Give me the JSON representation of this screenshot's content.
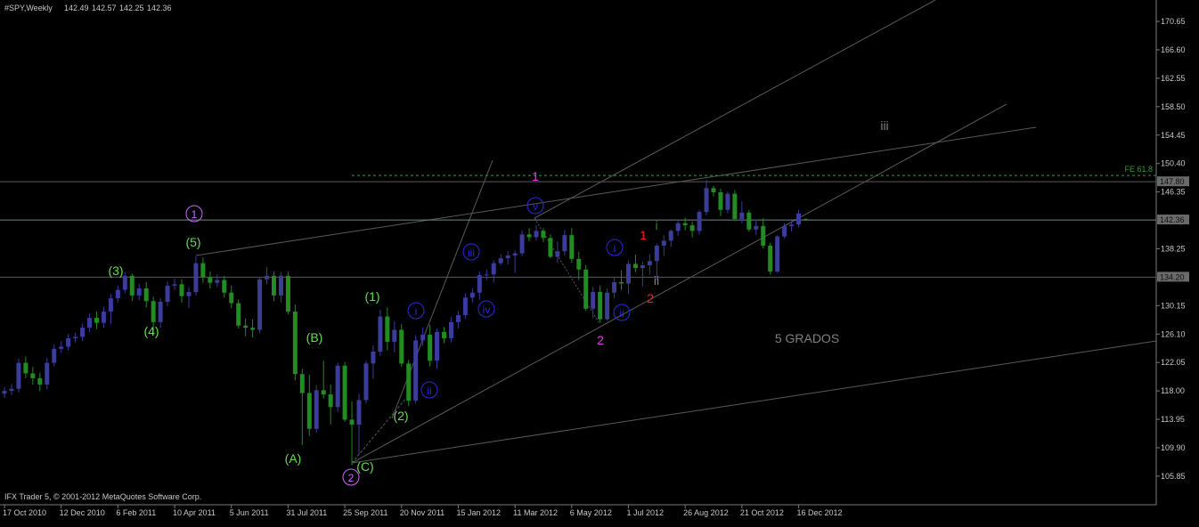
{
  "chart_data": {
    "type": "candlestick",
    "title": "#SPY,Weekly",
    "footer": "IFX Trader 5, © 2001-2012 MetaQuotes Software Corp.",
    "up_color": "#3c3c9a",
    "down_color": "#228b22",
    "categories": [
      "17 Oct 2010",
      null,
      null,
      null,
      null,
      null,
      null,
      null,
      "12 Dec 2010",
      null,
      null,
      null,
      null,
      null,
      null,
      null,
      "6 Feb 2011",
      null,
      null,
      null,
      null,
      null,
      null,
      null,
      "10 Apr 2011",
      null,
      null,
      null,
      null,
      null,
      null,
      null,
      "5 Jun 2011",
      null,
      null,
      null,
      null,
      null,
      null,
      null,
      "31 Jul 2011",
      null,
      null,
      null,
      null,
      null,
      null,
      null,
      "25 Sep 2011",
      null,
      null,
      null,
      null,
      null,
      null,
      null,
      "20 Nov 2011",
      null,
      null,
      null,
      null,
      null,
      null,
      null,
      "15 Jan 2012",
      null,
      null,
      null,
      null,
      null,
      null,
      null,
      "11 Mar 2012",
      null,
      null,
      null,
      null,
      null,
      null,
      null,
      "6 May 2012",
      null,
      null,
      null,
      null,
      null,
      null,
      null,
      "1 Jul 2012",
      null,
      null,
      null,
      null,
      null,
      null,
      null,
      "26 Aug 2012",
      null,
      null,
      null,
      null,
      null,
      null,
      null,
      "21 Oct 2012",
      null,
      null,
      null,
      null,
      null,
      null,
      null,
      "16 Dec 2012",
      null
    ],
    "open": [
      117.6,
      118.0,
      118.3,
      122.0,
      120.5,
      119.8,
      118.9,
      122.0,
      124.0,
      124.3,
      125.5,
      125.7,
      127.0,
      128.4,
      127.7,
      129.3,
      131.2,
      132.4,
      134.4,
      131.6,
      132.6,
      130.8,
      127.8,
      130.7,
      133.0,
      133.2,
      131.5,
      132.1,
      136.2,
      134.2,
      133.4,
      133.8,
      132.0,
      130.5,
      127.3,
      127.0,
      126.7,
      133.9,
      134.4,
      131.6,
      134.4,
      129.3,
      120.4,
      117.7,
      112.6,
      118.1,
      117.5,
      115.7,
      121.6,
      113.9,
      113.2,
      116.7,
      121.9,
      123.6,
      128.6,
      125.0,
      126.7,
      121.9,
      116.6,
      125.2,
      126.0,
      122.3,
      126.4,
      125.5,
      127.8,
      128.8,
      131.3,
      132.0,
      134.5,
      134.6,
      136.2,
      136.9,
      137.3,
      137.6,
      140.3,
      139.9,
      140.8,
      139.8,
      137.1,
      137.9,
      140.2,
      136.8,
      135.3,
      129.7,
      132.1,
      128.2,
      132.0,
      133.5,
      133.3,
      136.1,
      135.5,
      135.9,
      136.5,
      138.7,
      139.4,
      140.8,
      141.9,
      141.6,
      140.8,
      143.5,
      146.9,
      146.3,
      143.8,
      146.1,
      142.5,
      143.4,
      141.0,
      141.5,
      138.7,
      135.0,
      140.0,
      141.5,
      141.7,
      142.49
    ],
    "high": [
      118.5,
      119.0,
      122.6,
      122.9,
      121.4,
      120.6,
      122.7,
      124.6,
      125.1,
      126.1,
      126.3,
      127.6,
      129.0,
      129.3,
      130.0,
      131.8,
      133.0,
      134.9,
      134.7,
      133.3,
      133.5,
      131.4,
      131.2,
      133.6,
      134.0,
      133.9,
      132.8,
      137.2,
      137.0,
      135.0,
      134.6,
      134.4,
      133.0,
      131.0,
      128.3,
      128.2,
      134.2,
      135.7,
      135.0,
      134.9,
      135.0,
      130.3,
      121.1,
      120.3,
      118.8,
      122.3,
      118.9,
      122.0,
      122.1,
      116.5,
      117.6,
      122.3,
      124.5,
      129.6,
      129.9,
      127.9,
      127.5,
      122.4,
      125.9,
      127.0,
      127.4,
      126.9,
      127.1,
      128.5,
      129.4,
      131.9,
      132.6,
      135.0,
      135.3,
      136.6,
      137.5,
      137.9,
      138.0,
      140.9,
      141.2,
      141.6,
      141.2,
      140.3,
      139.3,
      140.9,
      141.2,
      137.8,
      135.9,
      132.8,
      133.0,
      132.6,
      134.1,
      135.2,
      136.6,
      137.4,
      136.4,
      137.5,
      139.0,
      140.2,
      141.0,
      142.2,
      142.7,
      142.1,
      143.8,
      148.1,
      147.2,
      146.8,
      146.4,
      146.6,
      145.0,
      143.8,
      142.4,
      142.6,
      139.1,
      140.2,
      141.9,
      142.2,
      143.8,
      142.57
    ],
    "low": [
      117.0,
      117.4,
      117.8,
      119.8,
      118.9,
      118.0,
      118.2,
      121.5,
      123.4,
      123.8,
      124.9,
      125.1,
      126.4,
      126.8,
      127.0,
      127.5,
      130.6,
      131.9,
      130.8,
      130.9,
      129.9,
      125.9,
      127.0,
      130.1,
      132.4,
      130.6,
      129.8,
      131.6,
      133.4,
      132.6,
      132.8,
      131.3,
      129.8,
      126.9,
      125.8,
      125.6,
      126.2,
      133.2,
      130.8,
      130.6,
      128.9,
      119.5,
      110.3,
      111.6,
      112.1,
      116.9,
      113.2,
      115.0,
      113.6,
      107.4,
      109.0,
      116.2,
      119.7,
      123.0,
      123.8,
      123.5,
      121.4,
      115.8,
      116.2,
      124.4,
      121.5,
      121.2,
      124.8,
      124.9,
      126.9,
      128.3,
      130.6,
      131.0,
      133.8,
      133.4,
      135.9,
      136.0,
      134.8,
      137.2,
      139.3,
      139.4,
      139.2,
      136.9,
      136.2,
      137.3,
      136.3,
      133.8,
      129.4,
      128.4,
      127.7,
      128.0,
      131.2,
      132.4,
      131.8,
      134.9,
      132.9,
      134.6,
      133.8,
      137.2,
      138.5,
      140.1,
      140.9,
      139.9,
      140.3,
      143.0,
      145.7,
      142.9,
      143.3,
      142.2,
      141.9,
      140.7,
      140.2,
      138.3,
      134.6,
      134.8,
      139.7,
      140.7,
      141.3,
      142.25
    ],
    "close": [
      118.0,
      118.3,
      122.0,
      120.5,
      119.8,
      118.9,
      122.0,
      124.0,
      124.3,
      125.5,
      125.7,
      127.0,
      128.4,
      127.7,
      129.3,
      131.2,
      132.4,
      134.4,
      131.6,
      132.6,
      130.8,
      127.8,
      130.7,
      133.0,
      133.2,
      131.5,
      132.1,
      136.2,
      134.2,
      133.4,
      133.8,
      132.0,
      130.5,
      127.3,
      127.0,
      126.7,
      133.9,
      134.4,
      131.6,
      134.4,
      129.3,
      120.4,
      117.7,
      112.6,
      118.1,
      117.5,
      115.7,
      121.6,
      113.9,
      113.2,
      116.7,
      121.9,
      123.6,
      128.6,
      125.0,
      126.7,
      121.9,
      116.6,
      125.2,
      126.0,
      122.3,
      126.4,
      125.5,
      127.8,
      128.8,
      131.3,
      132.0,
      134.5,
      134.6,
      136.2,
      136.9,
      137.3,
      137.6,
      140.3,
      139.9,
      140.8,
      139.8,
      137.1,
      137.9,
      140.2,
      136.8,
      135.3,
      129.7,
      132.1,
      128.2,
      132.0,
      133.5,
      133.3,
      136.1,
      135.5,
      135.9,
      136.5,
      138.7,
      139.4,
      140.8,
      141.9,
      141.6,
      140.8,
      143.5,
      146.9,
      146.3,
      143.8,
      146.1,
      142.5,
      143.4,
      141.0,
      141.5,
      138.7,
      135.0,
      140.0,
      141.5,
      141.7,
      143.3,
      142.36
    ],
    "ylim": [
      103.3,
      173.7
    ],
    "yticks": [
      170.65,
      {
        "value": 166.6,
        "label": "166.60"
      },
      162.55,
      {
        "value": 158.5,
        "label": "158.50"
      },
      154.45,
      {
        "value": 150.4,
        "label": "150.40"
      },
      146.35,
      138.25,
      130.15,
      {
        "value": 126.1,
        "label": "126.10"
      },
      122.05,
      {
        "value": 118,
        "label": "118.00"
      },
      113.95,
      {
        "value": 109.9,
        "label": "109.90"
      },
      105.85
    ],
    "levels": [
      {
        "value": 147.8,
        "label": "147.80"
      },
      {
        "value": 142.36,
        "label": "142.36"
      },
      {
        "value": 134.2,
        "label": "134.20"
      }
    ],
    "fibo": {
      "value": 148.7,
      "label": "FE 61.8",
      "color": "#2e9e2e"
    },
    "annotations": [
      {
        "text": "(3)",
        "color": "#66dd55"
      },
      {
        "text": "(4)",
        "color": "#66dd55"
      },
      {
        "text": "(5)",
        "color": "#66dd55"
      },
      {
        "text": "1",
        "color": "#cc66ff",
        "circled": true
      },
      {
        "text": "(A)",
        "color": "#66dd55"
      },
      {
        "text": "(B)",
        "color": "#66dd55"
      },
      {
        "text": "(1)",
        "color": "#66dd55"
      },
      {
        "text": "(2)",
        "color": "#66dd55"
      },
      {
        "text": "(C)",
        "color": "#66dd55"
      },
      {
        "text": "2",
        "color": "#cc66ff",
        "circled": true
      },
      {
        "text": "i",
        "color": "#2a2ae0",
        "circled": true
      },
      {
        "text": "ii",
        "color": "#2a2ae0",
        "circled": true
      },
      {
        "text": "iii",
        "color": "#2a2ae0",
        "circled": true
      },
      {
        "text": "iv",
        "color": "#2a2ae0",
        "circled": true
      },
      {
        "text": "v",
        "color": "#2a2ae0",
        "circled": true
      },
      {
        "text": "1",
        "color": "#e040e0"
      },
      {
        "text": "2",
        "color": "#e040e0"
      },
      {
        "text": "i",
        "color": "#2a2ae0",
        "circled": true
      },
      {
        "text": "ii",
        "color": "#2a2ae0",
        "circled": true
      },
      {
        "text": "1",
        "color": "#ff2020"
      },
      {
        "text": "2",
        "color": "#ff2020"
      },
      {
        "text": "i",
        "color": "#3a7a3a"
      },
      {
        "text": "ii",
        "color": "#808080"
      },
      {
        "text": "iii",
        "color": "#808080"
      },
      {
        "text": "5 GRADOS",
        "color": "#808080"
      }
    ]
  }
}
